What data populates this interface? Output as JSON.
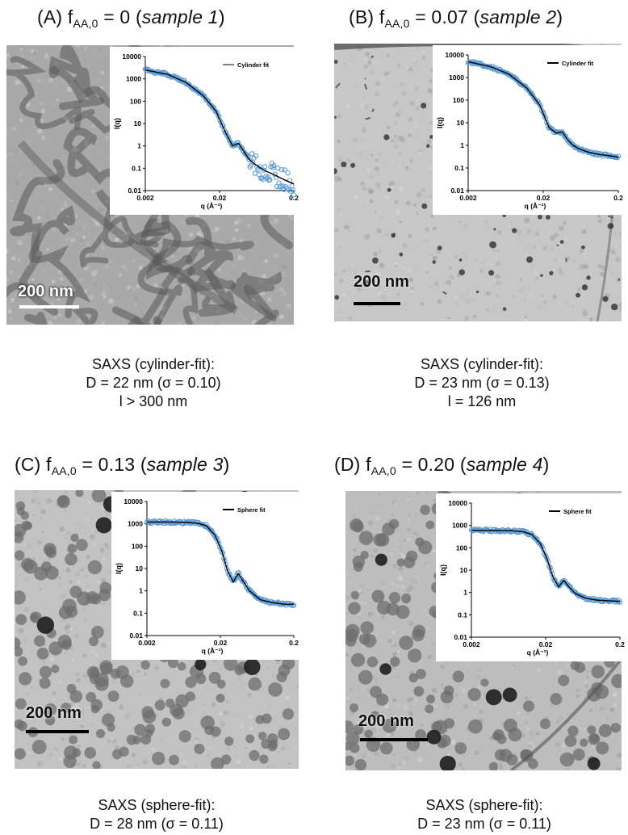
{
  "panels": [
    {
      "id": "A",
      "label": "(A) f",
      "sub": "AA,0",
      "value": " = 0 (",
      "sample": "sample 1",
      "close": ")",
      "scale_label": "200 nm",
      "legend": "Cylinder fit",
      "ylabel": "I(q)",
      "xlabel": "q (Å⁻¹)",
      "xticks": [
        "0.002",
        "0.02",
        "0.2"
      ],
      "yticks": [
        "10000",
        "1000",
        "100",
        "10",
        "1",
        "0.1",
        "0.01"
      ],
      "caption": [
        "SAXS (cylinder-fit):",
        "D = 22 nm (σ = 0.10)",
        "l > 300 nm"
      ]
    },
    {
      "id": "B",
      "label": "(B) f",
      "sub": "AA,0",
      "value": " = 0.07 (",
      "sample": "sample 2",
      "close": ")",
      "scale_label": "200 nm",
      "legend": "Cylinder fit",
      "ylabel": "I(q)",
      "xlabel": "q (Å⁻¹)",
      "xticks": [
        "0.002",
        "0.02",
        "0.2"
      ],
      "yticks": [
        "10000",
        "1000",
        "100",
        "10",
        "1",
        "0.1",
        "0.01"
      ],
      "caption": [
        "SAXS (cylinder-fit):",
        "D = 23 nm (σ = 0.13)",
        "l = 126 nm"
      ]
    },
    {
      "id": "C",
      "label": "(C) f",
      "sub": "AA,0",
      "value": " = 0.13 (",
      "sample": "sample 3",
      "close": ")",
      "scale_label": "200 nm",
      "legend": "Sphere fit",
      "ylabel": "I(q)",
      "xlabel": "q (Å⁻¹)",
      "xticks": [
        "0.002",
        "0.02",
        "0.2"
      ],
      "yticks": [
        "10000",
        "1000",
        "100",
        "10",
        "1",
        "0.1",
        "0.01"
      ],
      "caption": [
        "SAXS (sphere-fit):",
        "D = 28 nm (σ = 0.11)"
      ]
    },
    {
      "id": "D",
      "label": "(D) f",
      "sub": "AA,0",
      "value": " = 0.20 (",
      "sample": "sample 4",
      "close": ")",
      "scale_label": "200 nm",
      "legend": "Sphere fit",
      "ylabel": "I(q)",
      "xlabel": "q (Å⁻¹)",
      "xticks": [
        "0.002",
        "0.02",
        "0.2"
      ],
      "yticks": [
        "10000",
        "1000",
        "100",
        "10",
        "1",
        "0.1",
        "0.01"
      ],
      "caption": [
        "SAXS (sphere-fit):",
        "D = 23 nm (σ = 0.11)"
      ]
    }
  ],
  "colors": {
    "data_points": "#5b9bd5",
    "fit_line": "#000000"
  },
  "chart_data": [
    {
      "type": "scatter",
      "panel": "A",
      "xscale": "log",
      "yscale": "log",
      "xlim": [
        0.002,
        0.2
      ],
      "ylim": [
        0.01,
        10000
      ],
      "series": [
        {
          "name": "Cylinder fit",
          "x": [
            0.002,
            0.004,
            0.007,
            0.012,
            0.018,
            0.024,
            0.03,
            0.036,
            0.042,
            0.05,
            0.06,
            0.08,
            0.11,
            0.15,
            0.2
          ],
          "y": [
            2500,
            1600,
            700,
            180,
            35,
            4,
            1.0,
            1.3,
            0.6,
            0.25,
            0.15,
            0.08,
            0.05,
            0.03,
            0.02
          ]
        }
      ]
    },
    {
      "type": "scatter",
      "panel": "B",
      "xscale": "log",
      "yscale": "log",
      "xlim": [
        0.002,
        0.2
      ],
      "ylim": [
        0.01,
        10000
      ],
      "series": [
        {
          "name": "Cylinder fit",
          "x": [
            0.002,
            0.004,
            0.007,
            0.012,
            0.018,
            0.024,
            0.03,
            0.036,
            0.042,
            0.05,
            0.06,
            0.08,
            0.11,
            0.15,
            0.2
          ],
          "y": [
            5000,
            3000,
            1400,
            350,
            60,
            6,
            3.5,
            4.0,
            1.8,
            1.0,
            0.7,
            0.5,
            0.4,
            0.35,
            0.3
          ]
        }
      ]
    },
    {
      "type": "scatter",
      "panel": "C",
      "xscale": "log",
      "yscale": "log",
      "xlim": [
        0.002,
        0.2
      ],
      "ylim": [
        0.01,
        10000
      ],
      "series": [
        {
          "name": "Sphere fit",
          "x": [
            0.002,
            0.004,
            0.007,
            0.01,
            0.013,
            0.017,
            0.021,
            0.025,
            0.03,
            0.035,
            0.04,
            0.05,
            0.07,
            0.1,
            0.15,
            0.2
          ],
          "y": [
            1200,
            1200,
            1150,
            1050,
            800,
            300,
            60,
            8,
            2.5,
            6,
            3,
            1.0,
            0.4,
            0.3,
            0.25,
            0.25
          ]
        }
      ]
    },
    {
      "type": "scatter",
      "panel": "D",
      "xscale": "log",
      "yscale": "log",
      "xlim": [
        0.002,
        0.2
      ],
      "ylim": [
        0.01,
        10000
      ],
      "series": [
        {
          "name": "Sphere fit",
          "x": [
            0.002,
            0.004,
            0.007,
            0.01,
            0.013,
            0.017,
            0.021,
            0.025,
            0.03,
            0.035,
            0.04,
            0.05,
            0.07,
            0.1,
            0.15,
            0.2
          ],
          "y": [
            600,
            600,
            580,
            520,
            400,
            150,
            30,
            5,
            1.8,
            3.5,
            2,
            0.9,
            0.55,
            0.45,
            0.42,
            0.4
          ]
        }
      ]
    }
  ]
}
